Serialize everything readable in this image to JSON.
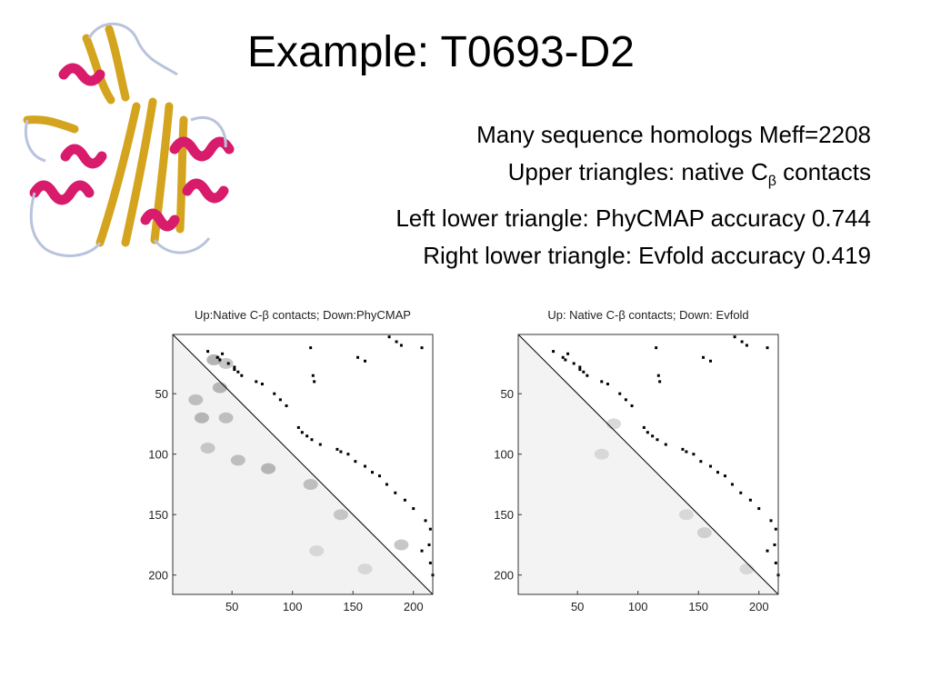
{
  "slide": {
    "title": "Example: T0693-D2",
    "info": {
      "line1": "Many sequence homologs Meff=2208",
      "line2_pre": "Upper triangles: native C",
      "line2_sub": "β",
      "line2_post": " contacts",
      "line3": "Left lower triangle: PhyCMAP accuracy 0.744",
      "line4": "Right lower triangle: Evfold accuracy 0.419"
    }
  },
  "chart_data": [
    {
      "type": "heatmap",
      "title": "Up:Native C-β contacts; Down:PhyCMAP",
      "xlim": [
        1,
        216
      ],
      "ylim": [
        1,
        216
      ],
      "y_inverted": true,
      "xticks": [
        50,
        100,
        150,
        200
      ],
      "yticks": [
        50,
        100,
        150,
        200
      ],
      "grid": false,
      "upper_contacts": [
        [
          15,
          30
        ],
        [
          17,
          42
        ],
        [
          20,
          38
        ],
        [
          22,
          40
        ],
        [
          25,
          47
        ],
        [
          28,
          52
        ],
        [
          30,
          52
        ],
        [
          32,
          55
        ],
        [
          35,
          58
        ],
        [
          40,
          70
        ],
        [
          42,
          75
        ],
        [
          50,
          85
        ],
        [
          55,
          90
        ],
        [
          60,
          95
        ],
        [
          78,
          105
        ],
        [
          82,
          108
        ],
        [
          85,
          112
        ],
        [
          88,
          116
        ],
        [
          92,
          123
        ],
        [
          96,
          137
        ],
        [
          98,
          140
        ],
        [
          100,
          146
        ],
        [
          106,
          152
        ],
        [
          110,
          160
        ],
        [
          115,
          166
        ],
        [
          118,
          172
        ],
        [
          125,
          178
        ],
        [
          132,
          185
        ],
        [
          138,
          193
        ],
        [
          145,
          200
        ],
        [
          155,
          210
        ],
        [
          162,
          214
        ],
        [
          175,
          213
        ],
        [
          180,
          207
        ],
        [
          190,
          214
        ],
        [
          200,
          216
        ],
        [
          3,
          180
        ],
        [
          7,
          186
        ],
        [
          10,
          190
        ],
        [
          12,
          207
        ],
        [
          20,
          154
        ],
        [
          23,
          160
        ],
        [
          35,
          117
        ],
        [
          40,
          118
        ],
        [
          12,
          115
        ]
      ],
      "lower_blobs": [
        [
          22,
          35,
          0.8
        ],
        [
          25,
          45,
          0.6
        ],
        [
          45,
          40,
          0.7
        ],
        [
          55,
          20,
          0.6
        ],
        [
          70,
          25,
          0.7
        ],
        [
          70,
          45,
          0.6
        ],
        [
          95,
          30,
          0.5
        ],
        [
          105,
          55,
          0.6
        ],
        [
          112,
          80,
          0.7
        ],
        [
          125,
          115,
          0.6
        ],
        [
          150,
          140,
          0.5
        ],
        [
          175,
          190,
          0.6
        ],
        [
          180,
          120,
          0.3
        ],
        [
          195,
          160,
          0.3
        ]
      ]
    },
    {
      "type": "heatmap",
      "title": "Up: Native C-β contacts; Down: Evfold",
      "xlim": [
        1,
        216
      ],
      "ylim": [
        1,
        216
      ],
      "y_inverted": true,
      "xticks": [
        50,
        100,
        150,
        200
      ],
      "yticks": [
        50,
        100,
        150,
        200
      ],
      "grid": false,
      "upper_contacts": [
        [
          15,
          30
        ],
        [
          17,
          42
        ],
        [
          20,
          38
        ],
        [
          22,
          40
        ],
        [
          25,
          47
        ],
        [
          28,
          52
        ],
        [
          30,
          52
        ],
        [
          32,
          55
        ],
        [
          35,
          58
        ],
        [
          40,
          70
        ],
        [
          42,
          75
        ],
        [
          50,
          85
        ],
        [
          55,
          90
        ],
        [
          60,
          95
        ],
        [
          78,
          105
        ],
        [
          82,
          108
        ],
        [
          85,
          112
        ],
        [
          88,
          116
        ],
        [
          92,
          123
        ],
        [
          96,
          137
        ],
        [
          98,
          140
        ],
        [
          100,
          146
        ],
        [
          106,
          152
        ],
        [
          110,
          160
        ],
        [
          115,
          166
        ],
        [
          118,
          172
        ],
        [
          125,
          178
        ],
        [
          132,
          185
        ],
        [
          138,
          193
        ],
        [
          145,
          200
        ],
        [
          155,
          210
        ],
        [
          162,
          214
        ],
        [
          175,
          213
        ],
        [
          180,
          207
        ],
        [
          190,
          214
        ],
        [
          200,
          216
        ],
        [
          3,
          180
        ],
        [
          7,
          186
        ],
        [
          10,
          190
        ],
        [
          12,
          207
        ],
        [
          20,
          154
        ],
        [
          23,
          160
        ],
        [
          35,
          117
        ],
        [
          40,
          118
        ],
        [
          12,
          115
        ]
      ],
      "lower_blobs": [
        [
          75,
          80,
          0.4
        ],
        [
          100,
          70,
          0.3
        ],
        [
          150,
          140,
          0.3
        ],
        [
          165,
          155,
          0.4
        ],
        [
          195,
          190,
          0.3
        ]
      ]
    }
  ]
}
